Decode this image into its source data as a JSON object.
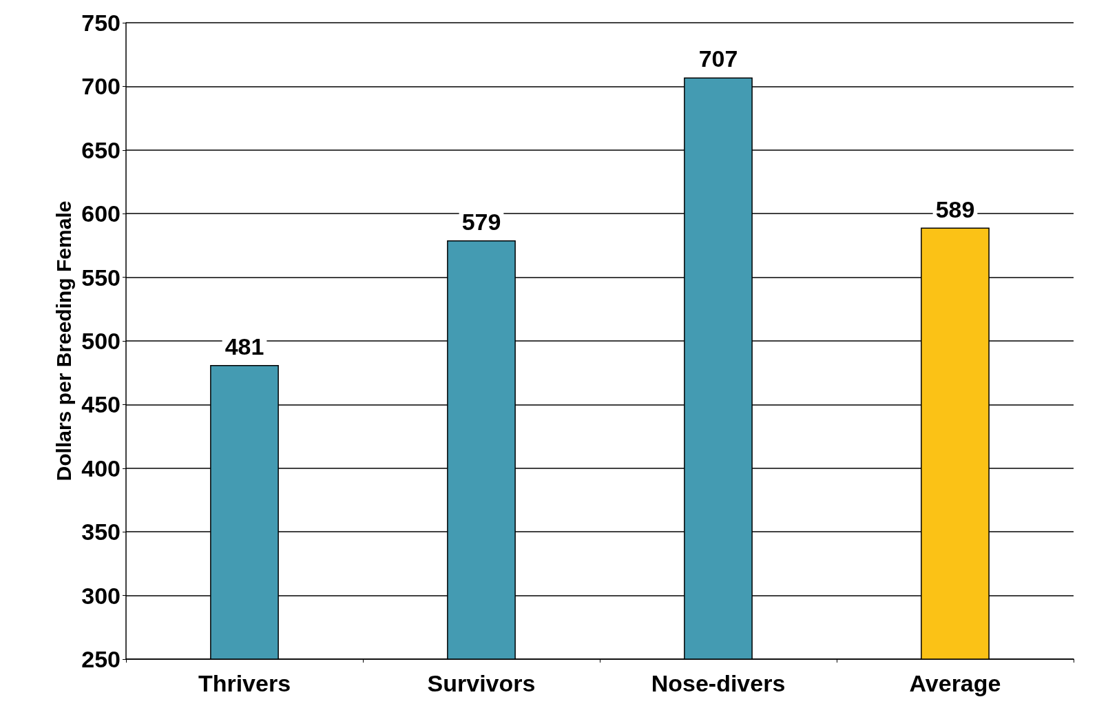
{
  "chart_data": {
    "type": "bar",
    "ylabel": "Dollars per Breeding Female",
    "categories": [
      "Thrivers",
      "Survivors",
      "Nose-divers",
      "Average"
    ],
    "values": [
      481,
      579,
      707,
      589
    ],
    "colors": [
      "#449bb2",
      "#449bb2",
      "#449bb2",
      "#fbc216"
    ],
    "ylim": [
      250,
      750
    ],
    "yticks": [
      250,
      300,
      350,
      400,
      450,
      500,
      550,
      600,
      650,
      700,
      750
    ],
    "grid": "y",
    "data_labels": true
  }
}
